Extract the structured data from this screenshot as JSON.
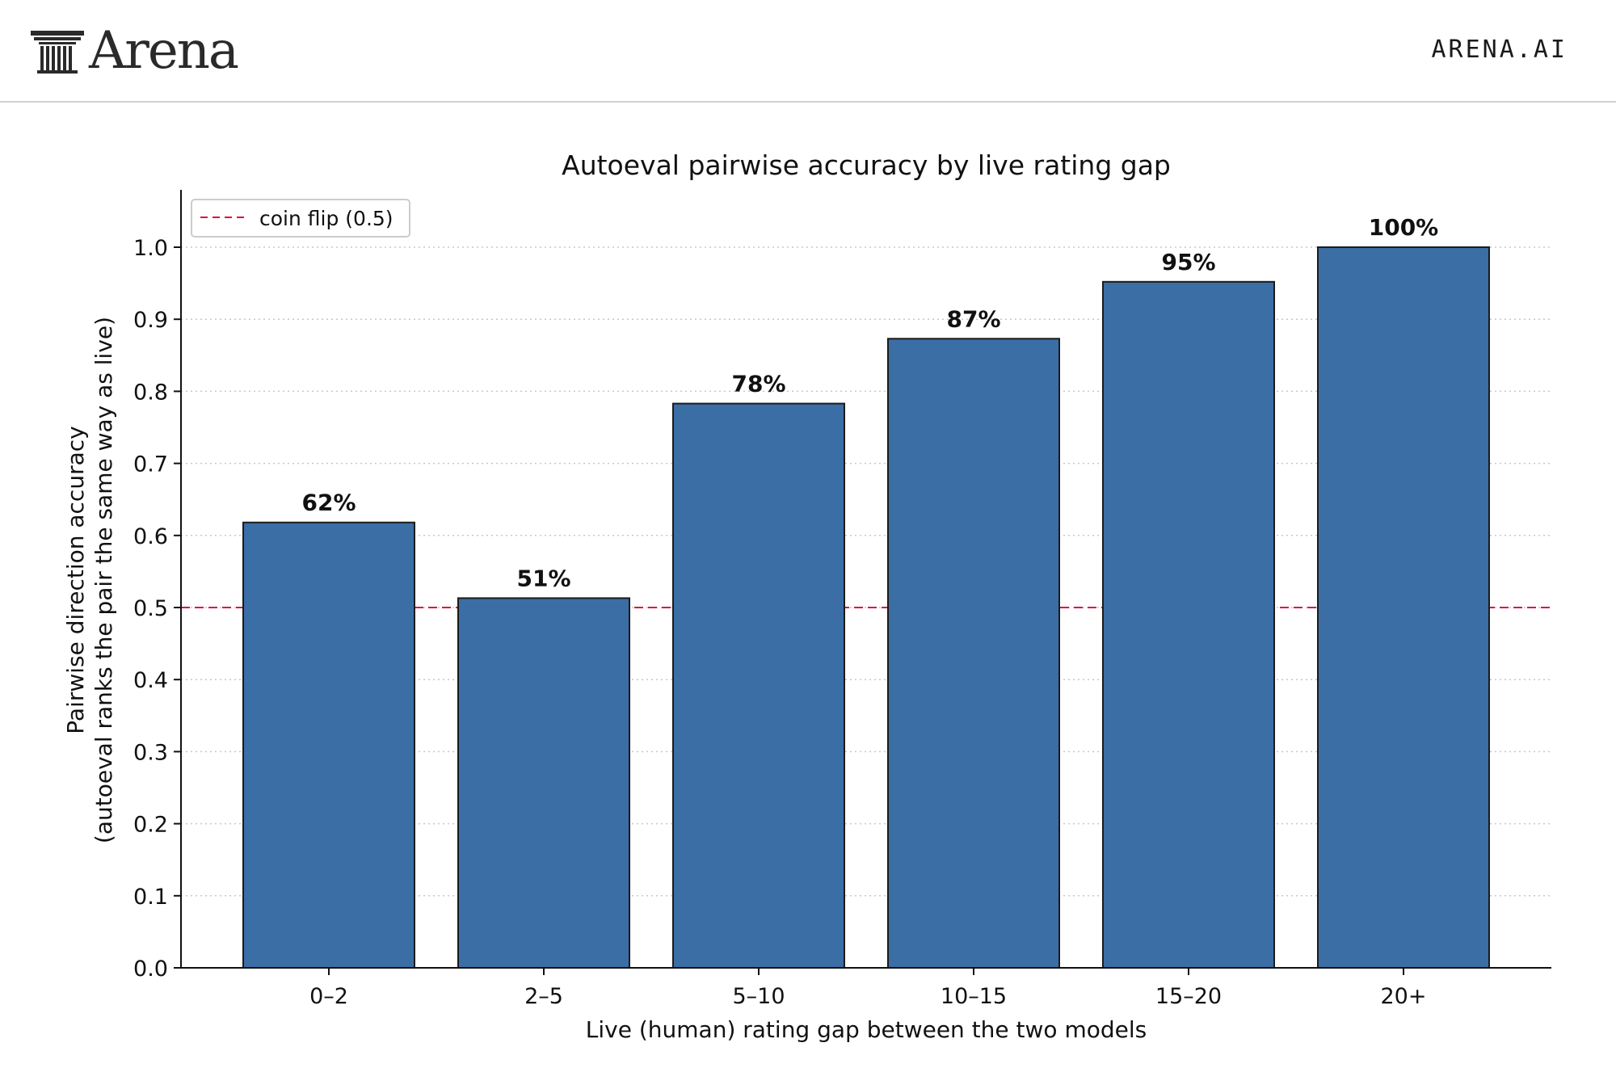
{
  "header": {
    "logo_text": "Arena",
    "site_label": "ARENA.AI"
  },
  "colors": {
    "bar": "#3b6ea5",
    "bar_edge": "#1b1b1b",
    "reference_line": "#dc143c",
    "grid": "#c8c8c8"
  },
  "chart_data": {
    "type": "bar",
    "title": "Autoeval pairwise accuracy by live rating gap",
    "xlabel": "Live (human) rating gap between the two models",
    "ylabel": [
      "Pairwise direction accuracy",
      "(autoeval ranks the pair the same way as live)"
    ],
    "categories": [
      "0–2",
      "2–5",
      "5–10",
      "10–15",
      "15–20",
      "20+"
    ],
    "values": [
      0.618,
      0.513,
      0.783,
      0.873,
      0.952,
      1.0
    ],
    "data_labels": [
      "62%",
      "51%",
      "78%",
      "87%",
      "95%",
      "100%"
    ],
    "ylim": [
      0,
      1.08
    ],
    "yticks": [
      0.0,
      0.1,
      0.2,
      0.3,
      0.4,
      0.5,
      0.6,
      0.7,
      0.8,
      0.9,
      1.0
    ],
    "ytick_labels": [
      "0.0",
      "0.1",
      "0.2",
      "0.3",
      "0.4",
      "0.5",
      "0.6",
      "0.7",
      "0.8",
      "0.9",
      "1.0"
    ],
    "reference_line": {
      "y": 0.5,
      "style": "dashed",
      "label": "coin flip (0.5)"
    },
    "legend": {
      "position": "top-left",
      "entries": [
        "coin flip (0.5)"
      ]
    },
    "grid": "horizontal dotted"
  }
}
